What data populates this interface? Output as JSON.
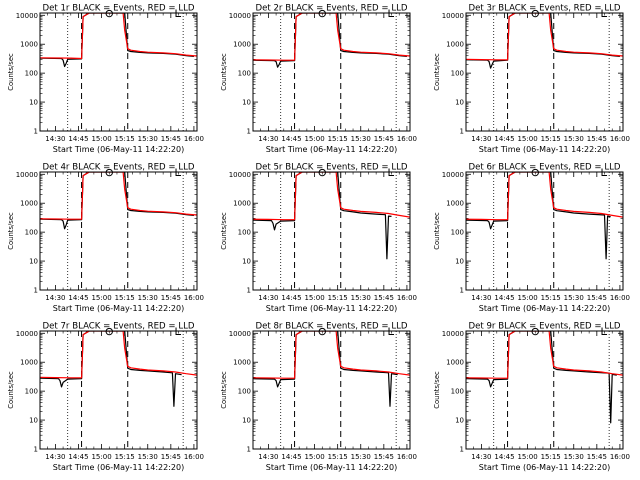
{
  "figure": {
    "axis_label_y": "Counts/sec",
    "xlabel": "Start Time (06-May-11 14:22:20)",
    "x_tick_labels": [
      "14:30",
      "14:45",
      "15:00",
      "15:15",
      "15:30",
      "15:45",
      "16:00"
    ],
    "y_tick_labels": [
      "1",
      "10",
      "100",
      "1000",
      "10000"
    ],
    "colors": {
      "events": "#000000",
      "lld": "#ff0000",
      "axes": "#000000"
    }
  },
  "chart_data": [
    {
      "type": "line",
      "title": "Det 1r BLACK = Events, RED = LLD",
      "x_unit": "minutes after 14:30 (06-May-11)",
      "xlim": [
        -10,
        92
      ],
      "ylim": [
        1,
        12000
      ],
      "y_scale": "log",
      "dashed_lines_x": [
        17,
        47
      ],
      "dotted_lines_x": [
        8,
        83
      ],
      "markers": [
        {
          "type": "circle",
          "x": 35,
          "y": 11500
        },
        {
          "type": "bracket",
          "x": 80,
          "y": 11500
        }
      ],
      "series": [
        {
          "color": "#000000",
          "x": [
            -10,
            4,
            5,
            6,
            7,
            8,
            17,
            18,
            22,
            25,
            30,
            35,
            40,
            45,
            47,
            49,
            55,
            60,
            70,
            78,
            85,
            90
          ],
          "y": [
            330,
            320,
            280,
            170,
            220,
            300,
            310,
            9000,
            12000,
            12000,
            12000,
            12000,
            12000,
            12000,
            600,
            560,
            520,
            500,
            480,
            450,
            400,
            380
          ]
        },
        {
          "color": "#ff0000",
          "x": [
            -10,
            0,
            10,
            17,
            18,
            22,
            35,
            44,
            45,
            47,
            49,
            55,
            60,
            70,
            78,
            85,
            92
          ],
          "y": [
            340,
            335,
            330,
            320,
            9000,
            12000,
            12000,
            12000,
            3000,
            700,
            620,
            560,
            530,
            500,
            470,
            420,
            390
          ]
        }
      ]
    },
    {
      "type": "line",
      "title": "Det 2r BLACK = Events, RED = LLD",
      "x_unit": "minutes after 14:30 (06-May-11)",
      "xlim": [
        -10,
        92
      ],
      "ylim": [
        1,
        12000
      ],
      "y_scale": "log",
      "dashed_lines_x": [
        17,
        47
      ],
      "dotted_lines_x": [
        8,
        83
      ],
      "markers": [
        {
          "type": "circle",
          "x": 35,
          "y": 11500
        },
        {
          "type": "bracket",
          "x": 80,
          "y": 11500
        }
      ],
      "series": [
        {
          "color": "#000000",
          "x": [
            -10,
            4,
            5,
            6,
            7,
            8,
            17,
            18,
            22,
            25,
            30,
            35,
            40,
            45,
            47,
            49,
            55,
            60,
            70,
            78,
            85,
            90
          ],
          "y": [
            280,
            270,
            250,
            160,
            200,
            260,
            270,
            9000,
            12000,
            12000,
            12000,
            12000,
            12000,
            12000,
            600,
            560,
            520,
            500,
            480,
            450,
            400,
            380
          ]
        },
        {
          "color": "#ff0000",
          "x": [
            -10,
            0,
            10,
            17,
            18,
            22,
            35,
            44,
            45,
            47,
            49,
            55,
            60,
            70,
            78,
            85,
            92
          ],
          "y": [
            290,
            285,
            280,
            280,
            9000,
            12000,
            12000,
            12000,
            3000,
            700,
            620,
            560,
            530,
            500,
            470,
            420,
            390
          ]
        }
      ]
    },
    {
      "type": "line",
      "title": "Det 3r BLACK = Events, RED = LLD",
      "x_unit": "minutes after 14:30 (06-May-11)",
      "xlim": [
        -10,
        92
      ],
      "ylim": [
        1,
        12000
      ],
      "y_scale": "log",
      "dashed_lines_x": [
        17,
        47
      ],
      "dotted_lines_x": [
        8,
        83
      ],
      "markers": [
        {
          "type": "circle",
          "x": 35,
          "y": 11500
        },
        {
          "type": "bracket",
          "x": 80,
          "y": 11500
        }
      ],
      "series": [
        {
          "color": "#000000",
          "x": [
            -10,
            4,
            5,
            6,
            7,
            8,
            17,
            18,
            22,
            25,
            30,
            35,
            40,
            45,
            47,
            49,
            55,
            60,
            70,
            78,
            85,
            90
          ],
          "y": [
            290,
            280,
            250,
            150,
            200,
            260,
            280,
            9000,
            12000,
            12000,
            12000,
            12000,
            12000,
            12000,
            600,
            560,
            520,
            500,
            480,
            450,
            400,
            380
          ]
        },
        {
          "color": "#ff0000",
          "x": [
            -10,
            0,
            10,
            17,
            18,
            22,
            35,
            44,
            45,
            47,
            49,
            55,
            60,
            70,
            78,
            85,
            92
          ],
          "y": [
            300,
            295,
            290,
            290,
            9000,
            12000,
            12000,
            12000,
            3000,
            700,
            620,
            560,
            530,
            500,
            470,
            420,
            390
          ]
        }
      ]
    },
    {
      "type": "line",
      "title": "Det 4r BLACK = Events, RED = LLD",
      "x_unit": "minutes after 14:30 (06-May-11)",
      "xlim": [
        -10,
        92
      ],
      "ylim": [
        1,
        12000
      ],
      "y_scale": "log",
      "dashed_lines_x": [
        17,
        47
      ],
      "dotted_lines_x": [
        8,
        83
      ],
      "markers": [
        {
          "type": "circle",
          "x": 35,
          "y": 11500
        },
        {
          "type": "bracket",
          "x": 80,
          "y": 11500
        }
      ],
      "series": [
        {
          "color": "#000000",
          "x": [
            -10,
            4,
            5,
            6,
            7,
            8,
            17,
            18,
            22,
            25,
            30,
            35,
            40,
            45,
            47,
            49,
            55,
            60,
            70,
            78,
            85,
            90
          ],
          "y": [
            280,
            270,
            240,
            130,
            180,
            260,
            270,
            9000,
            12000,
            12000,
            12000,
            12000,
            12000,
            12000,
            600,
            560,
            520,
            500,
            480,
            450,
            400,
            380
          ]
        },
        {
          "color": "#ff0000",
          "x": [
            -10,
            0,
            10,
            17,
            18,
            22,
            35,
            44,
            45,
            47,
            49,
            55,
            60,
            70,
            78,
            85,
            92
          ],
          "y": [
            290,
            285,
            280,
            280,
            9000,
            12000,
            12000,
            12000,
            3000,
            700,
            620,
            560,
            530,
            500,
            470,
            420,
            390
          ]
        }
      ]
    },
    {
      "type": "line",
      "title": "Det 5r BLACK = Events, RED = LLD",
      "x_unit": "minutes after 14:30 (06-May-11)",
      "xlim": [
        -10,
        92
      ],
      "ylim": [
        1,
        12000
      ],
      "y_scale": "log",
      "dashed_lines_x": [
        17,
        47
      ],
      "dotted_lines_x": [
        8,
        83
      ],
      "markers": [
        {
          "type": "circle",
          "x": 35,
          "y": 11500
        },
        {
          "type": "bracket",
          "x": 80,
          "y": 11500
        }
      ],
      "series": [
        {
          "color": "#000000",
          "x": [
            -10,
            2,
            3,
            4,
            5,
            8,
            17,
            18,
            22,
            25,
            30,
            35,
            40,
            45,
            47,
            49,
            55,
            60,
            70,
            76,
            77,
            78,
            80
          ],
          "y": [
            260,
            250,
            200,
            120,
            190,
            240,
            250,
            9000,
            12000,
            12000,
            12000,
            12000,
            12000,
            12000,
            600,
            550,
            500,
            460,
            420,
            400,
            12,
            360,
            350
          ]
        },
        {
          "color": "#ff0000",
          "x": [
            -10,
            0,
            10,
            17,
            18,
            22,
            35,
            44,
            45,
            47,
            49,
            55,
            60,
            70,
            78,
            85,
            92
          ],
          "y": [
            280,
            275,
            270,
            270,
            9000,
            12000,
            12000,
            12000,
            3000,
            700,
            620,
            560,
            520,
            480,
            440,
            380,
            330
          ]
        }
      ]
    },
    {
      "type": "line",
      "title": "Det 6r BLACK = Events, RED = LLD",
      "x_unit": "minutes after 14:30 (06-May-11)",
      "xlim": [
        -10,
        92
      ],
      "ylim": [
        1,
        12000
      ],
      "y_scale": "log",
      "dashed_lines_x": [
        17,
        47
      ],
      "dotted_lines_x": [
        8,
        83
      ],
      "markers": [
        {
          "type": "circle",
          "x": 35,
          "y": 11500
        },
        {
          "type": "bracket",
          "x": 80,
          "y": 11500
        }
      ],
      "series": [
        {
          "color": "#000000",
          "x": [
            -10,
            4,
            5,
            6,
            7,
            8,
            17,
            18,
            22,
            25,
            30,
            35,
            40,
            45,
            47,
            49,
            55,
            60,
            70,
            80,
            81,
            82,
            84
          ],
          "y": [
            260,
            250,
            220,
            130,
            180,
            240,
            250,
            9000,
            12000,
            12000,
            12000,
            12000,
            12000,
            12000,
            600,
            550,
            500,
            460,
            420,
            390,
            12,
            360,
            340
          ]
        },
        {
          "color": "#ff0000",
          "x": [
            -10,
            0,
            10,
            17,
            18,
            22,
            35,
            44,
            45,
            47,
            49,
            55,
            60,
            70,
            78,
            85,
            92
          ],
          "y": [
            280,
            275,
            270,
            270,
            9000,
            12000,
            12000,
            12000,
            3000,
            700,
            620,
            560,
            520,
            480,
            440,
            380,
            330
          ]
        }
      ]
    },
    {
      "type": "line",
      "title": "Det 7r BLACK = Events, RED = LLD",
      "x_unit": "minutes after 14:30 (06-May-11)",
      "xlim": [
        -10,
        92
      ],
      "ylim": [
        1,
        12000
      ],
      "y_scale": "log",
      "dashed_lines_x": [
        17,
        47
      ],
      "dotted_lines_x": [
        8,
        83
      ],
      "markers": [
        {
          "type": "circle",
          "x": 35,
          "y": 11500
        },
        {
          "type": "bracket",
          "x": 80,
          "y": 11500
        }
      ],
      "series": [
        {
          "color": "#000000",
          "x": [
            -10,
            2,
            3,
            4,
            5,
            8,
            17,
            18,
            22,
            25,
            30,
            35,
            40,
            45,
            47,
            49,
            55,
            60,
            70,
            76,
            77,
            78,
            82
          ],
          "y": [
            280,
            270,
            230,
            140,
            200,
            260,
            270,
            9000,
            12000,
            12000,
            12000,
            12000,
            12000,
            12000,
            620,
            560,
            520,
            500,
            460,
            430,
            30,
            400,
            370
          ]
        },
        {
          "color": "#ff0000",
          "x": [
            -10,
            0,
            10,
            17,
            18,
            22,
            35,
            44,
            45,
            47,
            49,
            55,
            60,
            70,
            78,
            85,
            92
          ],
          "y": [
            300,
            295,
            290,
            290,
            9000,
            12000,
            12000,
            12000,
            3000,
            720,
            640,
            580,
            540,
            500,
            460,
            400,
            360
          ]
        }
      ]
    },
    {
      "type": "line",
      "title": "Det 8r BLACK = Events, RED = LLD",
      "x_unit": "minutes after 14:30 (06-May-11)",
      "xlim": [
        -10,
        92
      ],
      "ylim": [
        1,
        12000
      ],
      "y_scale": "log",
      "dashed_lines_x": [
        17,
        47
      ],
      "dotted_lines_x": [
        8,
        83
      ],
      "markers": [
        {
          "type": "circle",
          "x": 35,
          "y": 11500
        },
        {
          "type": "bracket",
          "x": 80,
          "y": 11500
        }
      ],
      "series": [
        {
          "color": "#000000",
          "x": [
            -10,
            4,
            5,
            6,
            7,
            8,
            17,
            18,
            22,
            25,
            30,
            35,
            40,
            45,
            47,
            49,
            55,
            60,
            70,
            78,
            79,
            80,
            84
          ],
          "y": [
            270,
            260,
            230,
            140,
            190,
            250,
            260,
            9000,
            12000,
            12000,
            12000,
            12000,
            12000,
            12000,
            620,
            560,
            520,
            500,
            460,
            430,
            30,
            400,
            370
          ]
        },
        {
          "color": "#ff0000",
          "x": [
            -10,
            0,
            10,
            17,
            18,
            22,
            35,
            44,
            45,
            47,
            49,
            55,
            60,
            70,
            78,
            85,
            92
          ],
          "y": [
            290,
            285,
            280,
            280,
            9000,
            12000,
            12000,
            12000,
            3000,
            720,
            640,
            580,
            540,
            500,
            460,
            400,
            360
          ]
        }
      ]
    },
    {
      "type": "line",
      "title": "Det 9r BLACK = Events, RED = LLD",
      "x_unit": "minutes after 14:30 (06-May-11)",
      "xlim": [
        -10,
        92
      ],
      "ylim": [
        1,
        12000
      ],
      "y_scale": "log",
      "dashed_lines_x": [
        17,
        47
      ],
      "dotted_lines_x": [
        8,
        83
      ],
      "markers": [
        {
          "type": "circle",
          "x": 35,
          "y": 11500
        },
        {
          "type": "bracket",
          "x": 80,
          "y": 11500
        }
      ],
      "series": [
        {
          "color": "#000000",
          "x": [
            -10,
            4,
            5,
            6,
            7,
            8,
            17,
            18,
            22,
            25,
            30,
            35,
            40,
            45,
            47,
            49,
            55,
            60,
            70,
            83,
            84,
            85,
            88
          ],
          "y": [
            270,
            260,
            230,
            140,
            190,
            250,
            260,
            9000,
            12000,
            12000,
            12000,
            12000,
            12000,
            12000,
            620,
            560,
            520,
            500,
            460,
            420,
            8,
            380,
            360
          ]
        },
        {
          "color": "#ff0000",
          "x": [
            -10,
            0,
            10,
            17,
            18,
            22,
            35,
            44,
            45,
            47,
            49,
            55,
            60,
            70,
            78,
            85,
            92
          ],
          "y": [
            290,
            285,
            280,
            280,
            9000,
            12000,
            12000,
            12000,
            3000,
            720,
            640,
            580,
            540,
            500,
            460,
            400,
            360
          ]
        }
      ]
    }
  ]
}
